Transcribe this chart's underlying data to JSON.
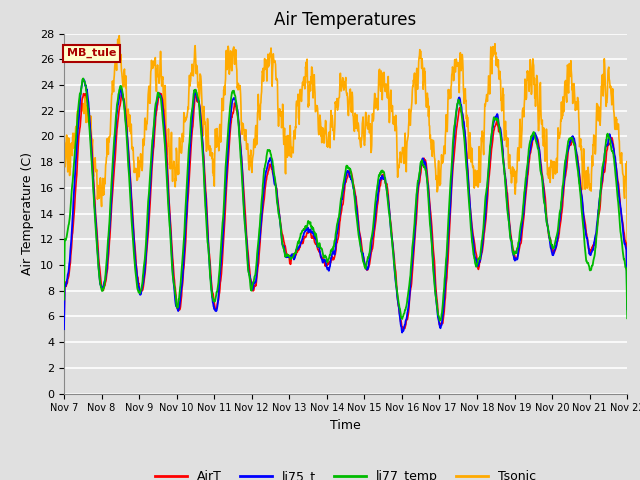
{
  "title": "Air Temperatures",
  "xlabel": "Time",
  "ylabel": "Air Temperature (C)",
  "ylim": [
    0,
    28
  ],
  "yticks": [
    0,
    2,
    4,
    6,
    8,
    10,
    12,
    14,
    16,
    18,
    20,
    22,
    24,
    26,
    28
  ],
  "series_colors": {
    "AirT": "#ff0000",
    "li75_t": "#0000ff",
    "li77_temp": "#00bb00",
    "Tsonic": "#ffaa00"
  },
  "legend_label": "MB_tule",
  "legend_box_color": "#ffffcc",
  "legend_box_edge": "#aa0000",
  "bg_color": "#e0e0e0",
  "grid_color": "#ffffff",
  "title_fontsize": 12,
  "axis_fontsize": 9,
  "tick_fontsize": 8,
  "num_points": 1500,
  "num_days": 15
}
